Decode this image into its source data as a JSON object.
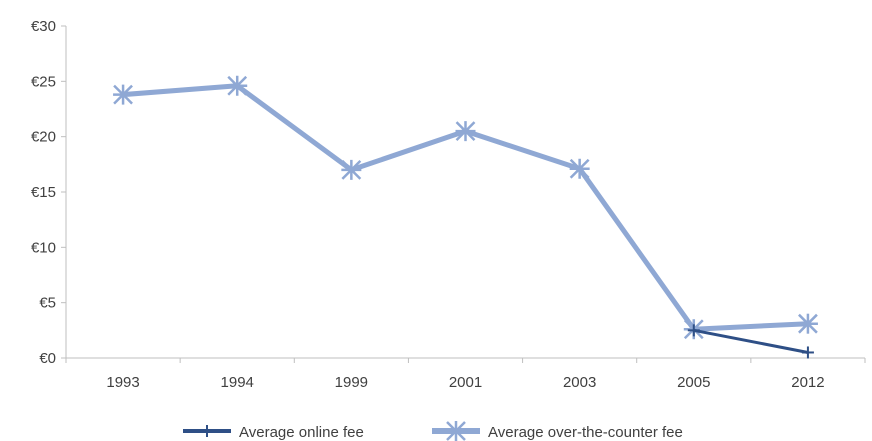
{
  "chart_data": {
    "type": "line",
    "categories": [
      "1993",
      "1994",
      "1999",
      "2001",
      "2003",
      "2005",
      "2012"
    ],
    "series": [
      {
        "name": "Average online fee",
        "values": [
          null,
          null,
          null,
          null,
          null,
          2.5,
          0.5
        ],
        "color": "#2e4f86",
        "marker": "plus"
      },
      {
        "name": "Average over-the-counter fee",
        "values": [
          23.8,
          24.6,
          17.0,
          20.5,
          17.1,
          2.6,
          3.1
        ],
        "color": "#8fa8d4",
        "marker": "asterisk"
      }
    ],
    "ylim": [
      0,
      30
    ],
    "yticks": [
      0,
      5,
      10,
      15,
      20,
      25,
      30
    ],
    "ytick_labels": [
      "€0",
      "€5",
      "€10",
      "€15",
      "€20",
      "€25",
      "€30"
    ],
    "grid": false,
    "legend_position": "bottom",
    "title": "",
    "xlabel": "",
    "ylabel": ""
  }
}
